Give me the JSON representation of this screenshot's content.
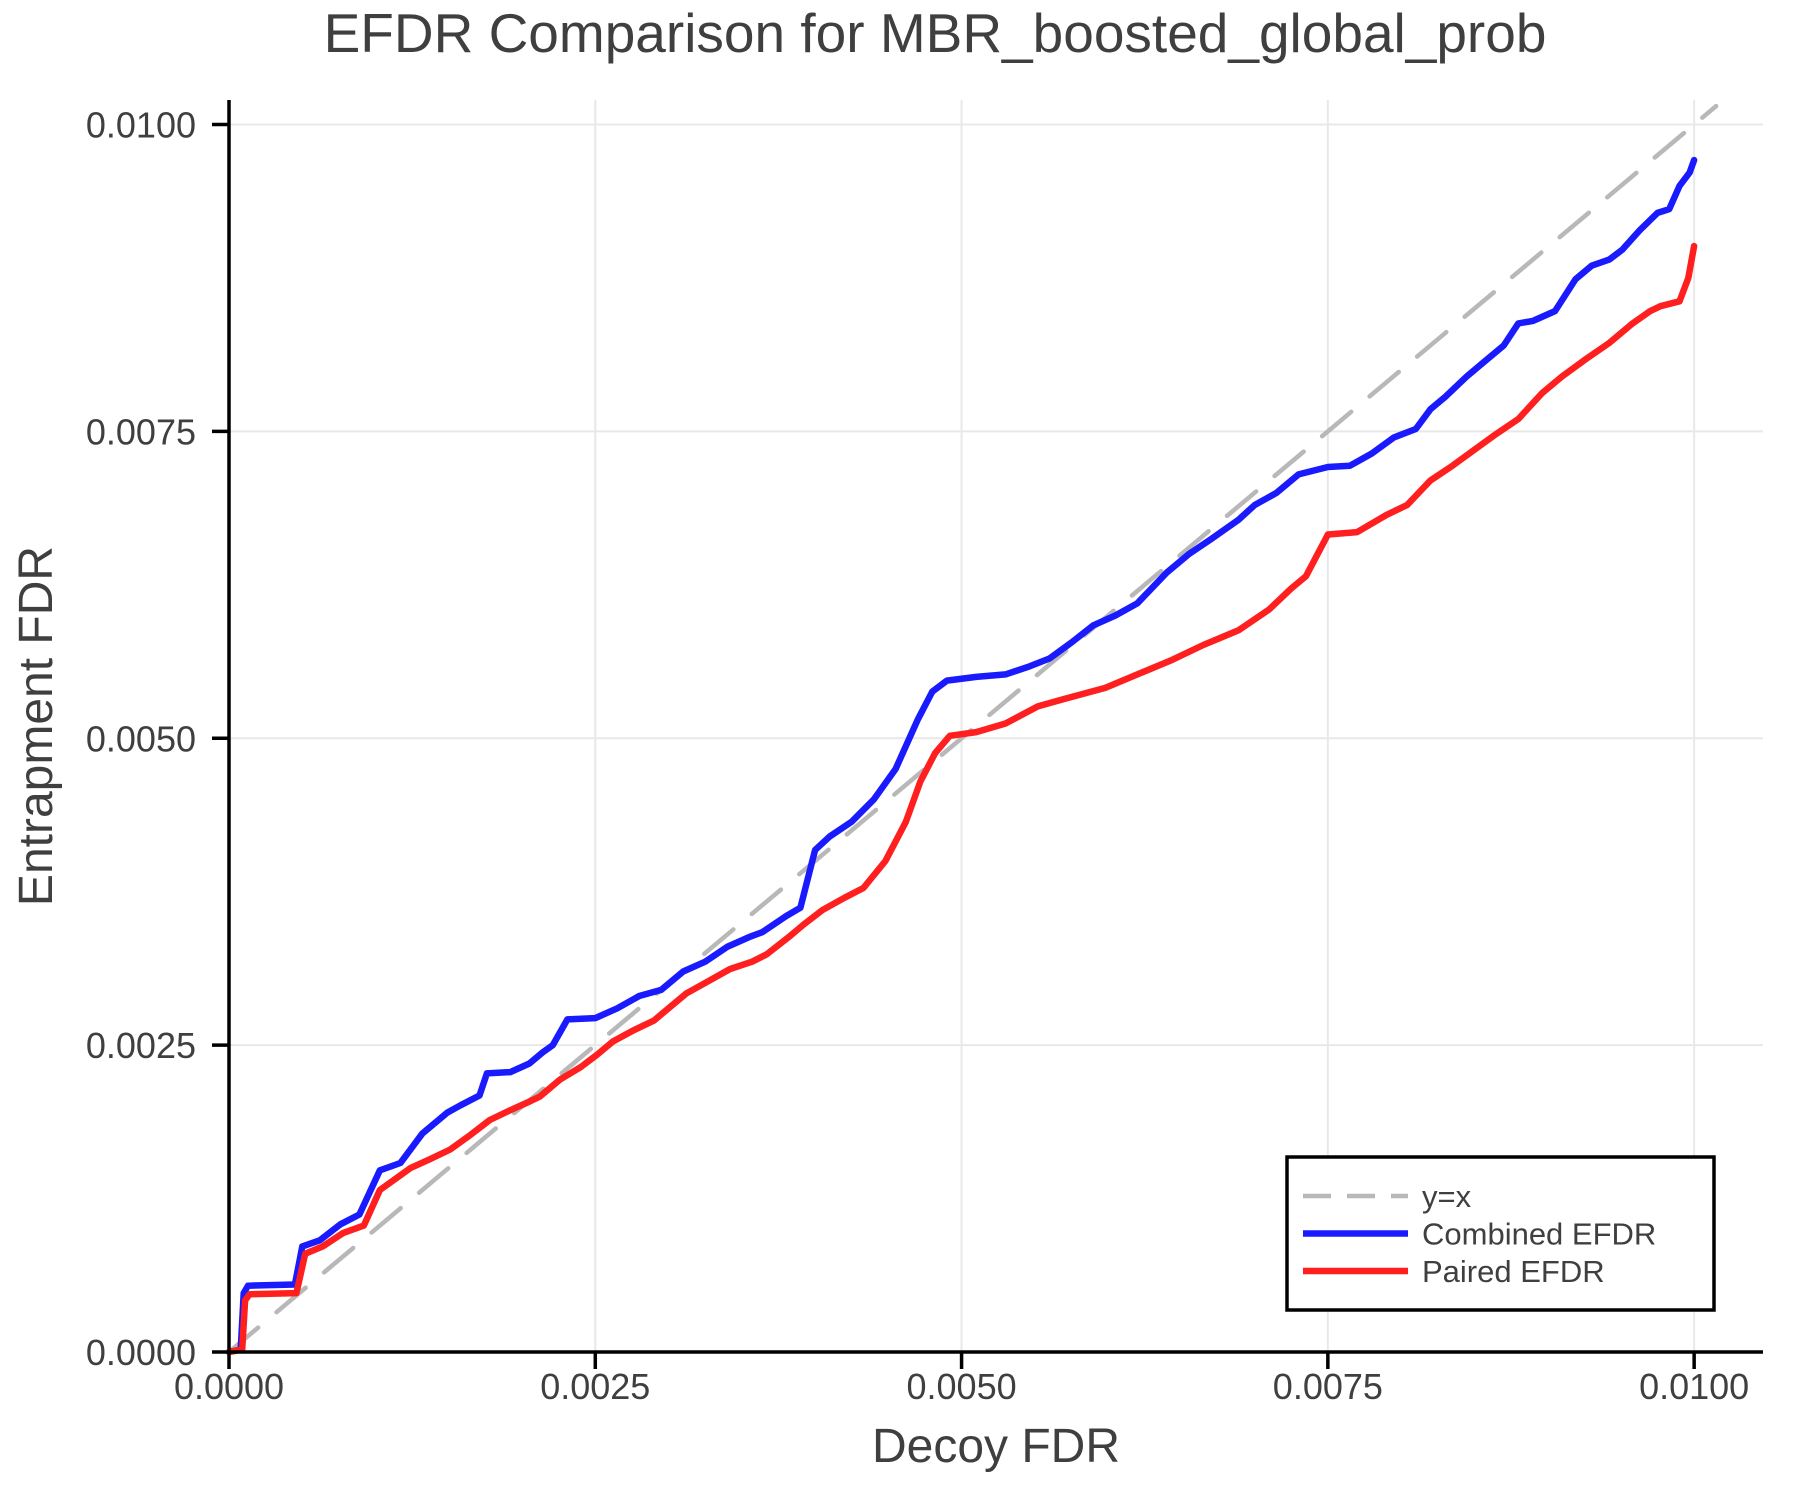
{
  "figure": {
    "background": "#ffffff",
    "text_color": "#3f3f3f",
    "axis_color": "#000000",
    "grid_color": "#e8e8e8"
  },
  "chart_data": {
    "type": "line",
    "title": "EFDR Comparison for MBR_boosted_global_prob",
    "xlabel": "Decoy FDR",
    "ylabel": "Entrapment FDR",
    "xlim": [
      0,
      0.01047
    ],
    "ylim": [
      0,
      0.0102
    ],
    "grid": true,
    "legend_position": "lower right",
    "xticks": {
      "values": [
        0,
        0.0025,
        0.005,
        0.0075,
        0.01
      ],
      "labels": [
        "0.0000",
        "0.0025",
        "0.0050",
        "0.0075",
        "0.0100"
      ]
    },
    "yticks": {
      "values": [
        0,
        0.0025,
        0.005,
        0.0075,
        0.01
      ],
      "labels": [
        "0.0000",
        "0.0025",
        "0.0050",
        "0.0075",
        "0.0100"
      ]
    },
    "legend": [
      {
        "label": "y=x",
        "color": "#b8b8b8",
        "dashed": true
      },
      {
        "label": "Combined EFDR",
        "color": "#1a1aff",
        "dashed": false
      },
      {
        "label": "Paired EFDR",
        "color": "#ff1f1f",
        "dashed": false
      }
    ],
    "series": [
      {
        "name": "y=x",
        "color": "#b8b8b8",
        "dashed": true,
        "width": 4.5,
        "points": [
          [
            0,
            0
          ],
          [
            0.01015,
            0.01015
          ]
        ]
      },
      {
        "name": "Combined EFDR",
        "color": "#1a1aff",
        "dashed": false,
        "width": 6.5,
        "points": [
          [
            0,
            0
          ],
          [
            8e-05,
            2e-05
          ],
          [
            0.0001,
            0.00048
          ],
          [
            0.00013,
            0.00054
          ],
          [
            0.00045,
            0.00055
          ],
          [
            0.0005,
            0.00086
          ],
          [
            0.00062,
            0.00091
          ],
          [
            0.00076,
            0.00104
          ],
          [
            0.00089,
            0.00112
          ],
          [
            0.00103,
            0.00148
          ],
          [
            0.00117,
            0.00154
          ],
          [
            0.00132,
            0.00178
          ],
          [
            0.00149,
            0.00195
          ],
          [
            0.00158,
            0.00201
          ],
          [
            0.00171,
            0.00209
          ],
          [
            0.00176,
            0.00227
          ],
          [
            0.00192,
            0.00228
          ],
          [
            0.00205,
            0.00235
          ],
          [
            0.00214,
            0.00244
          ],
          [
            0.00221,
            0.0025
          ],
          [
            0.00231,
            0.00271
          ],
          [
            0.0025,
            0.00272
          ],
          [
            0.00265,
            0.0028
          ],
          [
            0.0028,
            0.0029
          ],
          [
            0.00295,
            0.00295
          ],
          [
            0.0031,
            0.0031
          ],
          [
            0.00325,
            0.00318
          ],
          [
            0.0034,
            0.0033
          ],
          [
            0.00355,
            0.00338
          ],
          [
            0.00364,
            0.00342
          ],
          [
            0.0038,
            0.00355
          ],
          [
            0.0039,
            0.00362
          ],
          [
            0.004,
            0.00409
          ],
          [
            0.0041,
            0.0042
          ],
          [
            0.00425,
            0.00432
          ],
          [
            0.0044,
            0.0045
          ],
          [
            0.00455,
            0.00475
          ],
          [
            0.0047,
            0.00515
          ],
          [
            0.0048,
            0.00538
          ],
          [
            0.0049,
            0.00547
          ],
          [
            0.0051,
            0.0055
          ],
          [
            0.0053,
            0.00552
          ],
          [
            0.00545,
            0.00558
          ],
          [
            0.0056,
            0.00565
          ],
          [
            0.00575,
            0.00578
          ],
          [
            0.0059,
            0.00592
          ],
          [
            0.00605,
            0.006
          ],
          [
            0.0062,
            0.0061
          ],
          [
            0.0064,
            0.00635
          ],
          [
            0.00655,
            0.0065
          ],
          [
            0.0067,
            0.00662
          ],
          [
            0.00689,
            0.00678
          ],
          [
            0.007,
            0.0069
          ],
          [
            0.00715,
            0.007
          ],
          [
            0.0073,
            0.00715
          ],
          [
            0.0075,
            0.00721
          ],
          [
            0.00765,
            0.00722
          ],
          [
            0.0078,
            0.00732
          ],
          [
            0.00795,
            0.00745
          ],
          [
            0.0081,
            0.00752
          ],
          [
            0.0082,
            0.00768
          ],
          [
            0.0083,
            0.00778
          ],
          [
            0.00845,
            0.00795
          ],
          [
            0.00855,
            0.00805
          ],
          [
            0.0087,
            0.0082
          ],
          [
            0.0088,
            0.00838
          ],
          [
            0.0089,
            0.0084
          ],
          [
            0.00905,
            0.00848
          ],
          [
            0.00919,
            0.00874
          ],
          [
            0.0093,
            0.00885
          ],
          [
            0.00942,
            0.0089
          ],
          [
            0.00951,
            0.00898
          ],
          [
            0.00963,
            0.00914
          ],
          [
            0.00975,
            0.00928
          ],
          [
            0.00983,
            0.00931
          ],
          [
            0.0099,
            0.0095
          ],
          [
            0.00997,
            0.00961
          ],
          [
            0.01,
            0.00971
          ]
        ]
      },
      {
        "name": "Paired EFDR",
        "color": "#ff1f1f",
        "dashed": false,
        "width": 6.5,
        "points": [
          [
            0,
            0
          ],
          [
            9e-05,
            2e-05
          ],
          [
            0.00011,
            0.00042
          ],
          [
            0.00014,
            0.00047
          ],
          [
            0.00046,
            0.00048
          ],
          [
            0.00052,
            0.0008
          ],
          [
            0.00064,
            0.00086
          ],
          [
            0.00078,
            0.00097
          ],
          [
            0.00092,
            0.00103
          ],
          [
            0.00103,
            0.00132
          ],
          [
            0.0011,
            0.00138
          ],
          [
            0.00124,
            0.0015
          ],
          [
            0.00137,
            0.00157
          ],
          [
            0.00151,
            0.00165
          ],
          [
            0.00165,
            0.00177
          ],
          [
            0.00178,
            0.00189
          ],
          [
            0.00192,
            0.00197
          ],
          [
            0.00205,
            0.00204
          ],
          [
            0.00212,
            0.00208
          ],
          [
            0.00226,
            0.00222
          ],
          [
            0.0024,
            0.00232
          ],
          [
            0.00251,
            0.00242
          ],
          [
            0.00262,
            0.00253
          ],
          [
            0.00276,
            0.00262
          ],
          [
            0.0029,
            0.0027
          ],
          [
            0.00297,
            0.00277
          ],
          [
            0.00312,
            0.00292
          ],
          [
            0.00327,
            0.00302
          ],
          [
            0.00342,
            0.00312
          ],
          [
            0.00357,
            0.00318
          ],
          [
            0.00367,
            0.00324
          ],
          [
            0.00382,
            0.00338
          ],
          [
            0.00392,
            0.00348
          ],
          [
            0.00405,
            0.0036
          ],
          [
            0.0042,
            0.0037
          ],
          [
            0.00433,
            0.00378
          ],
          [
            0.00448,
            0.004
          ],
          [
            0.00462,
            0.00432
          ],
          [
            0.00472,
            0.00465
          ],
          [
            0.00482,
            0.00488
          ],
          [
            0.00492,
            0.00502
          ],
          [
            0.0051,
            0.00505
          ],
          [
            0.0053,
            0.00512
          ],
          [
            0.00552,
            0.00526
          ],
          [
            0.0057,
            0.00532
          ],
          [
            0.00598,
            0.00541
          ],
          [
            0.0062,
            0.00552
          ],
          [
            0.00644,
            0.00564
          ],
          [
            0.00665,
            0.00576
          ],
          [
            0.00689,
            0.00588
          ],
          [
            0.0071,
            0.00605
          ],
          [
            0.00725,
            0.00622
          ],
          [
            0.00735,
            0.00632
          ],
          [
            0.0075,
            0.00666
          ],
          [
            0.0077,
            0.00668
          ],
          [
            0.0079,
            0.00682
          ],
          [
            0.00804,
            0.0069
          ],
          [
            0.0082,
            0.0071
          ],
          [
            0.00835,
            0.00722
          ],
          [
            0.0085,
            0.00735
          ],
          [
            0.00865,
            0.00748
          ],
          [
            0.0088,
            0.0076
          ],
          [
            0.00896,
            0.00781
          ],
          [
            0.0091,
            0.00795
          ],
          [
            0.00925,
            0.00808
          ],
          [
            0.00942,
            0.00822
          ],
          [
            0.00958,
            0.00838
          ],
          [
            0.0097,
            0.00848
          ],
          [
            0.00977,
            0.00852
          ],
          [
            0.0099,
            0.00856
          ],
          [
            0.00996,
            0.00875
          ],
          [
            0.01,
            0.00901
          ]
        ]
      }
    ]
  }
}
